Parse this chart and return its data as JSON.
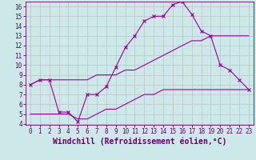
{
  "title": "",
  "xlabel": "Windchill (Refroidissement éolien,°C)",
  "line1": {
    "x": [
      0,
      1,
      2,
      3,
      4,
      5,
      6,
      7,
      8,
      9,
      10,
      11,
      12,
      13,
      14,
      15,
      16,
      17,
      18,
      19,
      20,
      21,
      22,
      23
    ],
    "y": [
      8.0,
      8.5,
      8.5,
      8.5,
      8.5,
      8.5,
      8.5,
      9.0,
      9.0,
      9.0,
      9.5,
      9.5,
      10.0,
      10.5,
      11.0,
      11.5,
      12.0,
      12.5,
      12.5,
      13.0,
      13.0,
      13.0,
      13.0,
      13.0
    ],
    "color": "#990099",
    "lw": 0.8
  },
  "line2": {
    "x": [
      0,
      1,
      2,
      3,
      4,
      5,
      6,
      7,
      8,
      9,
      10,
      11,
      12,
      13,
      14,
      15,
      16,
      17,
      18,
      19,
      20,
      21,
      22,
      23
    ],
    "y": [
      5.0,
      5.0,
      5.0,
      5.0,
      5.0,
      4.5,
      4.5,
      5.0,
      5.5,
      5.5,
      6.0,
      6.5,
      7.0,
      7.0,
      7.5,
      7.5,
      7.5,
      7.5,
      7.5,
      7.5,
      7.5,
      7.5,
      7.5,
      7.5
    ],
    "color": "#990099",
    "lw": 0.8
  },
  "line3": {
    "x": [
      0,
      1,
      2,
      3,
      4,
      5,
      6,
      7,
      8,
      9,
      10,
      11,
      12,
      13,
      14,
      15,
      16,
      17,
      18,
      19,
      20,
      21,
      22,
      23
    ],
    "y": [
      8.0,
      8.5,
      8.5,
      5.2,
      5.2,
      4.2,
      7.0,
      7.0,
      7.8,
      9.8,
      11.8,
      13.0,
      14.5,
      15.0,
      15.0,
      16.2,
      16.5,
      15.2,
      13.5,
      13.0,
      10.0,
      9.5,
      8.5,
      7.5
    ],
    "color": "#990099",
    "lw": 0.8,
    "marker": "x",
    "ms": 2.5
  },
  "bg_color": "#cce8e8",
  "grid_color": "#bbbbbb",
  "axis_color": "#660066",
  "ylim": [
    4,
    16.5
  ],
  "xlim": [
    -0.5,
    23.5
  ],
  "yticks": [
    4,
    5,
    6,
    7,
    8,
    9,
    10,
    11,
    12,
    13,
    14,
    15,
    16
  ],
  "xticks": [
    0,
    1,
    2,
    3,
    4,
    5,
    6,
    7,
    8,
    9,
    10,
    11,
    12,
    13,
    14,
    15,
    16,
    17,
    18,
    19,
    20,
    21,
    22,
    23
  ],
  "tick_fontsize": 5.5,
  "label_fontsize": 7.0
}
